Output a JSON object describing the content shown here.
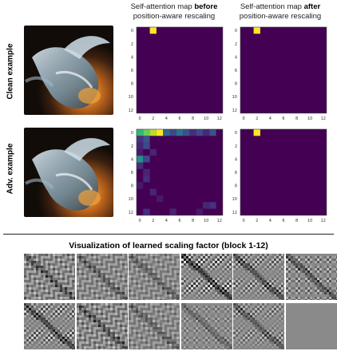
{
  "figure": {
    "col1_title": {
      "line1_normal": "Self-attention map ",
      "line1_bold": "before",
      "line2": "position-aware rescaling"
    },
    "col2_title": {
      "line1_normal": "Self-attention map ",
      "line1_bold": "after",
      "line2": "position-aware rescaling"
    },
    "row_labels": [
      "Clean example",
      "Adv. example"
    ],
    "section_title": "Visualization of learned scaling factor (block 1-12)"
  },
  "heatmaps": [
    {
      "name": "clean-before",
      "x_ticks": [
        "0",
        "2",
        "4",
        "6",
        "8",
        "10",
        "12"
      ],
      "y_ticks": [
        "0",
        "2",
        "4",
        "6",
        "8",
        "10",
        "12"
      ],
      "base_color": "#440154",
      "hot_cells": [
        {
          "r": 0,
          "c": 2,
          "color": "#fde725"
        }
      ]
    },
    {
      "name": "clean-after",
      "x_ticks": [
        "0",
        "2",
        "4",
        "6",
        "8",
        "10",
        "12"
      ],
      "y_ticks": [
        "0",
        "2",
        "4",
        "6",
        "8",
        "10",
        "12"
      ],
      "base_color": "#440154",
      "hot_cells": [
        {
          "r": 0,
          "c": 2,
          "color": "#fde725"
        }
      ]
    },
    {
      "name": "adv-before",
      "x_ticks": [
        "0",
        "2",
        "4",
        "6",
        "8",
        "10",
        "12"
      ],
      "y_ticks": [
        "0",
        "2",
        "4",
        "6",
        "8",
        "10",
        "12"
      ],
      "base_color": "#440154",
      "hot_cells": [
        {
          "r": 0,
          "c": 0,
          "color": "#35b779"
        },
        {
          "r": 0,
          "c": 1,
          "color": "#6ccd5a"
        },
        {
          "r": 0,
          "c": 2,
          "color": "#b5de2b"
        },
        {
          "r": 0,
          "c": 3,
          "color": "#fde725"
        },
        {
          "r": 0,
          "c": 4,
          "color": "#31688e"
        },
        {
          "r": 0,
          "c": 5,
          "color": "#3e4989"
        },
        {
          "r": 0,
          "c": 6,
          "color": "#2c728e"
        },
        {
          "r": 0,
          "c": 7,
          "color": "#3b528b"
        },
        {
          "r": 0,
          "c": 8,
          "color": "#472d7b"
        },
        {
          "r": 0,
          "c": 9,
          "color": "#3e4989"
        },
        {
          "r": 0,
          "c": 10,
          "color": "#482878"
        },
        {
          "r": 0,
          "c": 11,
          "color": "#3b528b"
        },
        {
          "r": 1,
          "c": 0,
          "color": "#46327e"
        },
        {
          "r": 1,
          "c": 1,
          "color": "#3b528b"
        },
        {
          "r": 2,
          "c": 0,
          "color": "#482475"
        },
        {
          "r": 2,
          "c": 1,
          "color": "#3e4989"
        },
        {
          "r": 3,
          "c": 0,
          "color": "#48186a"
        },
        {
          "r": 3,
          "c": 2,
          "color": "#482475"
        },
        {
          "r": 4,
          "c": 0,
          "color": "#21918c"
        },
        {
          "r": 4,
          "c": 1,
          "color": "#3e4989"
        },
        {
          "r": 5,
          "c": 0,
          "color": "#472d7b"
        },
        {
          "r": 6,
          "c": 1,
          "color": "#482475"
        },
        {
          "r": 7,
          "c": 1,
          "color": "#472d7b"
        },
        {
          "r": 8,
          "c": 0,
          "color": "#48186a"
        },
        {
          "r": 9,
          "c": 2,
          "color": "#482475"
        },
        {
          "r": 10,
          "c": 3,
          "color": "#48186a"
        },
        {
          "r": 11,
          "c": 10,
          "color": "#482475"
        },
        {
          "r": 11,
          "c": 11,
          "color": "#46327e"
        },
        {
          "r": 12,
          "c": 1,
          "color": "#472d7b"
        },
        {
          "r": 12,
          "c": 5,
          "color": "#482475"
        },
        {
          "r": 12,
          "c": 9,
          "color": "#48186a"
        }
      ]
    },
    {
      "name": "adv-after",
      "x_ticks": [
        "0",
        "2",
        "4",
        "6",
        "8",
        "10",
        "12"
      ],
      "y_ticks": [
        "0",
        "2",
        "4",
        "6",
        "8",
        "10",
        "12"
      ],
      "base_color": "#440154",
      "hot_cells": [
        {
          "r": 0,
          "c": 2,
          "color": "#fde725"
        }
      ]
    }
  ],
  "scaling_factor_tiles": [
    {
      "block": 1,
      "style": "diag",
      "contrast": 0.55
    },
    {
      "block": 2,
      "style": "diag",
      "contrast": 0.45
    },
    {
      "block": 3,
      "style": "diag",
      "contrast": 0.4
    },
    {
      "block": 4,
      "style": "stripes",
      "contrast": 0.85
    },
    {
      "block": 5,
      "style": "stripes",
      "contrast": 0.6
    },
    {
      "block": 6,
      "style": "grid",
      "contrast": 0.55
    },
    {
      "block": 7,
      "style": "stripes",
      "contrast": 0.7
    },
    {
      "block": 8,
      "style": "diag",
      "contrast": 0.55
    },
    {
      "block": 9,
      "style": "diag",
      "contrast": 0.4
    },
    {
      "block": 10,
      "style": "grid",
      "contrast": 0.35
    },
    {
      "block": 11,
      "style": "stripes",
      "contrast": 0.5
    },
    {
      "block": 12,
      "style": "flat",
      "contrast": 0.05
    }
  ]
}
